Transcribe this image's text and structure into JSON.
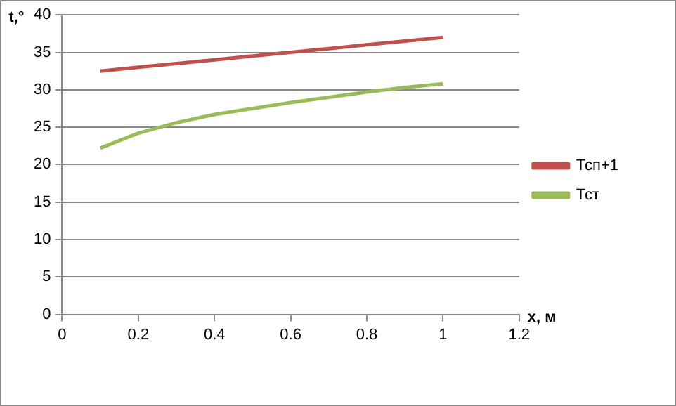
{
  "chart_data": {
    "type": "line",
    "xlabel": "x, м",
    "ylabel": "t,°",
    "x": [
      0.1,
      0.2,
      0.3,
      0.4,
      0.5,
      0.6,
      0.7,
      0.8,
      0.9,
      1.0
    ],
    "series": [
      {
        "name": "Тсп+1",
        "color": "#c0504d",
        "values": [
          32.5,
          33,
          33.5,
          34,
          34.5,
          35,
          35.5,
          36,
          36.5,
          37
        ]
      },
      {
        "name": "Тст",
        "color": "#9bbb59",
        "values": [
          22.2,
          24.2,
          25.6,
          26.7,
          27.5,
          28.3,
          29,
          29.7,
          30.3,
          30.8
        ]
      }
    ],
    "xlim": [
      0,
      1.2
    ],
    "xticks": [
      0,
      0.2,
      0.4,
      0.6,
      0.8,
      1,
      1.2
    ],
    "ylim": [
      0,
      40
    ],
    "yticks": [
      0,
      5,
      10,
      15,
      20,
      25,
      30,
      35,
      40
    ],
    "grid": "y",
    "legend": "right",
    "marker": "none",
    "line_style": "solid"
  }
}
